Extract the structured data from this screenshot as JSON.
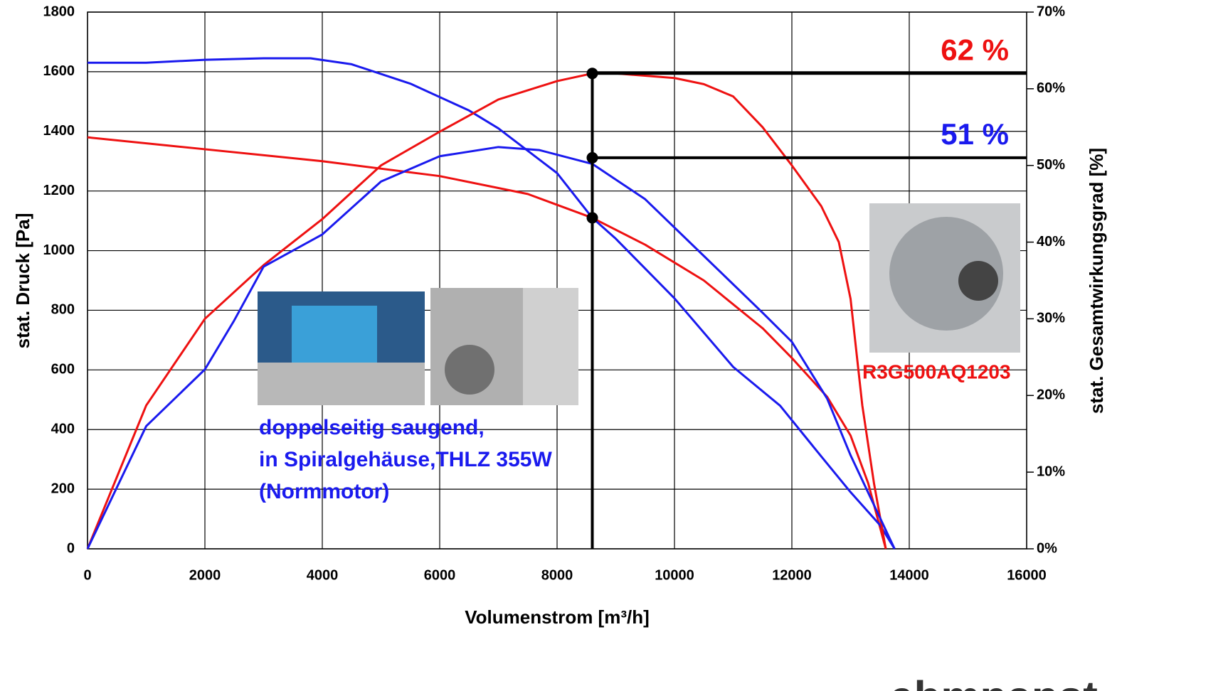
{
  "chart_data": {
    "type": "line",
    "xlabel": "Volumenstrom [m³/h]",
    "ylabel": "stat. Druck [Pa]",
    "y2label": "stat. Gesamtwirkungsgrad [%]",
    "xlim": [
      0,
      16000
    ],
    "xticks": [
      0,
      2000,
      4000,
      6000,
      8000,
      10000,
      12000,
      14000,
      16000
    ],
    "ylim": [
      0,
      1800
    ],
    "yticks": [
      0,
      200,
      400,
      600,
      800,
      1000,
      1200,
      1400,
      1600,
      1800
    ],
    "y2lim": [
      0,
      70
    ],
    "y2ticks": [
      {
        "value": 0,
        "label": "0%"
      },
      {
        "value": 10,
        "label": "10%"
      },
      {
        "value": 20,
        "label": "20%"
      },
      {
        "value": 30,
        "label": "30%"
      },
      {
        "value": 40,
        "label": "40%"
      },
      {
        "value": 50,
        "label": "50%"
      },
      {
        "value": 60,
        "label": "60%"
      },
      {
        "value": 70,
        "label": "70%"
      }
    ],
    "grid": true,
    "series": [
      {
        "color": "#ee1111",
        "x": [
          0,
          2000,
          4000,
          6000,
          7500,
          8600,
          9500,
          10500,
          11500,
          12000,
          12600,
          13000,
          13300,
          13600
        ],
        "values": [
          1380,
          1340,
          1300,
          1250,
          1190,
          1110,
          1020,
          900,
          740,
          640,
          510,
          380,
          220,
          0
        ]
      },
      {
        "color": "#1a1aee",
        "x": [
          0,
          1000,
          2000,
          3000,
          3800,
          4500,
          5500,
          6500,
          7000,
          8000,
          8600,
          9000,
          10000,
          11000,
          11800,
          12500,
          13000,
          13500,
          13750
        ],
        "values": [
          1630,
          1630,
          1640,
          1645,
          1645,
          1625,
          1560,
          1470,
          1410,
          1260,
          1110,
          1040,
          840,
          610,
          480,
          310,
          190,
          80,
          0
        ]
      },
      {
        "color": "#ee1111",
        "axis": "y2",
        "x": [
          0,
          1000,
          2000,
          3000,
          4000,
          5000,
          6000,
          7000,
          8000,
          8600,
          9000,
          10000,
          10500,
          11000,
          11500,
          12000,
          12500,
          12800,
          13000,
          13200,
          13400,
          13600
        ],
        "values": [
          0,
          18.7,
          30,
          37,
          43,
          50,
          54.4,
          58.6,
          61,
          62,
          62,
          61.4,
          60.6,
          59,
          55,
          50,
          44.7,
          40,
          32.6,
          18.7,
          8.5,
          0
        ]
      },
      {
        "color": "#1a1aee",
        "axis": "y2",
        "x": [
          0,
          1000,
          2000,
          2500,
          3000,
          4000,
          5000,
          6000,
          7000,
          7700,
          8600,
          9500,
          10500,
          11500,
          12000,
          12600,
          13000,
          13400,
          13750
        ],
        "values": [
          0,
          16,
          23.4,
          29.8,
          36.8,
          41,
          47.9,
          51.2,
          52.4,
          52,
          50.2,
          45.6,
          38.2,
          30.8,
          27,
          19.6,
          12.2,
          5.7,
          0
        ]
      }
    ],
    "operating_x": 8600,
    "operating_pressure": 1110,
    "reference_lines": [
      {
        "text": "62 %",
        "value": 62,
        "color": "#ee1111"
      },
      {
        "text": "51 %",
        "value": 51,
        "color": "#1a1aee"
      }
    ],
    "annotations": [
      {
        "text": "doppelseitig saugend,",
        "color": "#1a1aee"
      },
      {
        "text": "in Spiralgehäuse,THLZ 355W",
        "color": "#1a1aee"
      },
      {
        "text": "(Normmotor)",
        "color": "#1a1aee"
      },
      {
        "text": "R3G500AQ1203",
        "color": "#ee1111"
      }
    ],
    "logo": "ebmpapst"
  }
}
